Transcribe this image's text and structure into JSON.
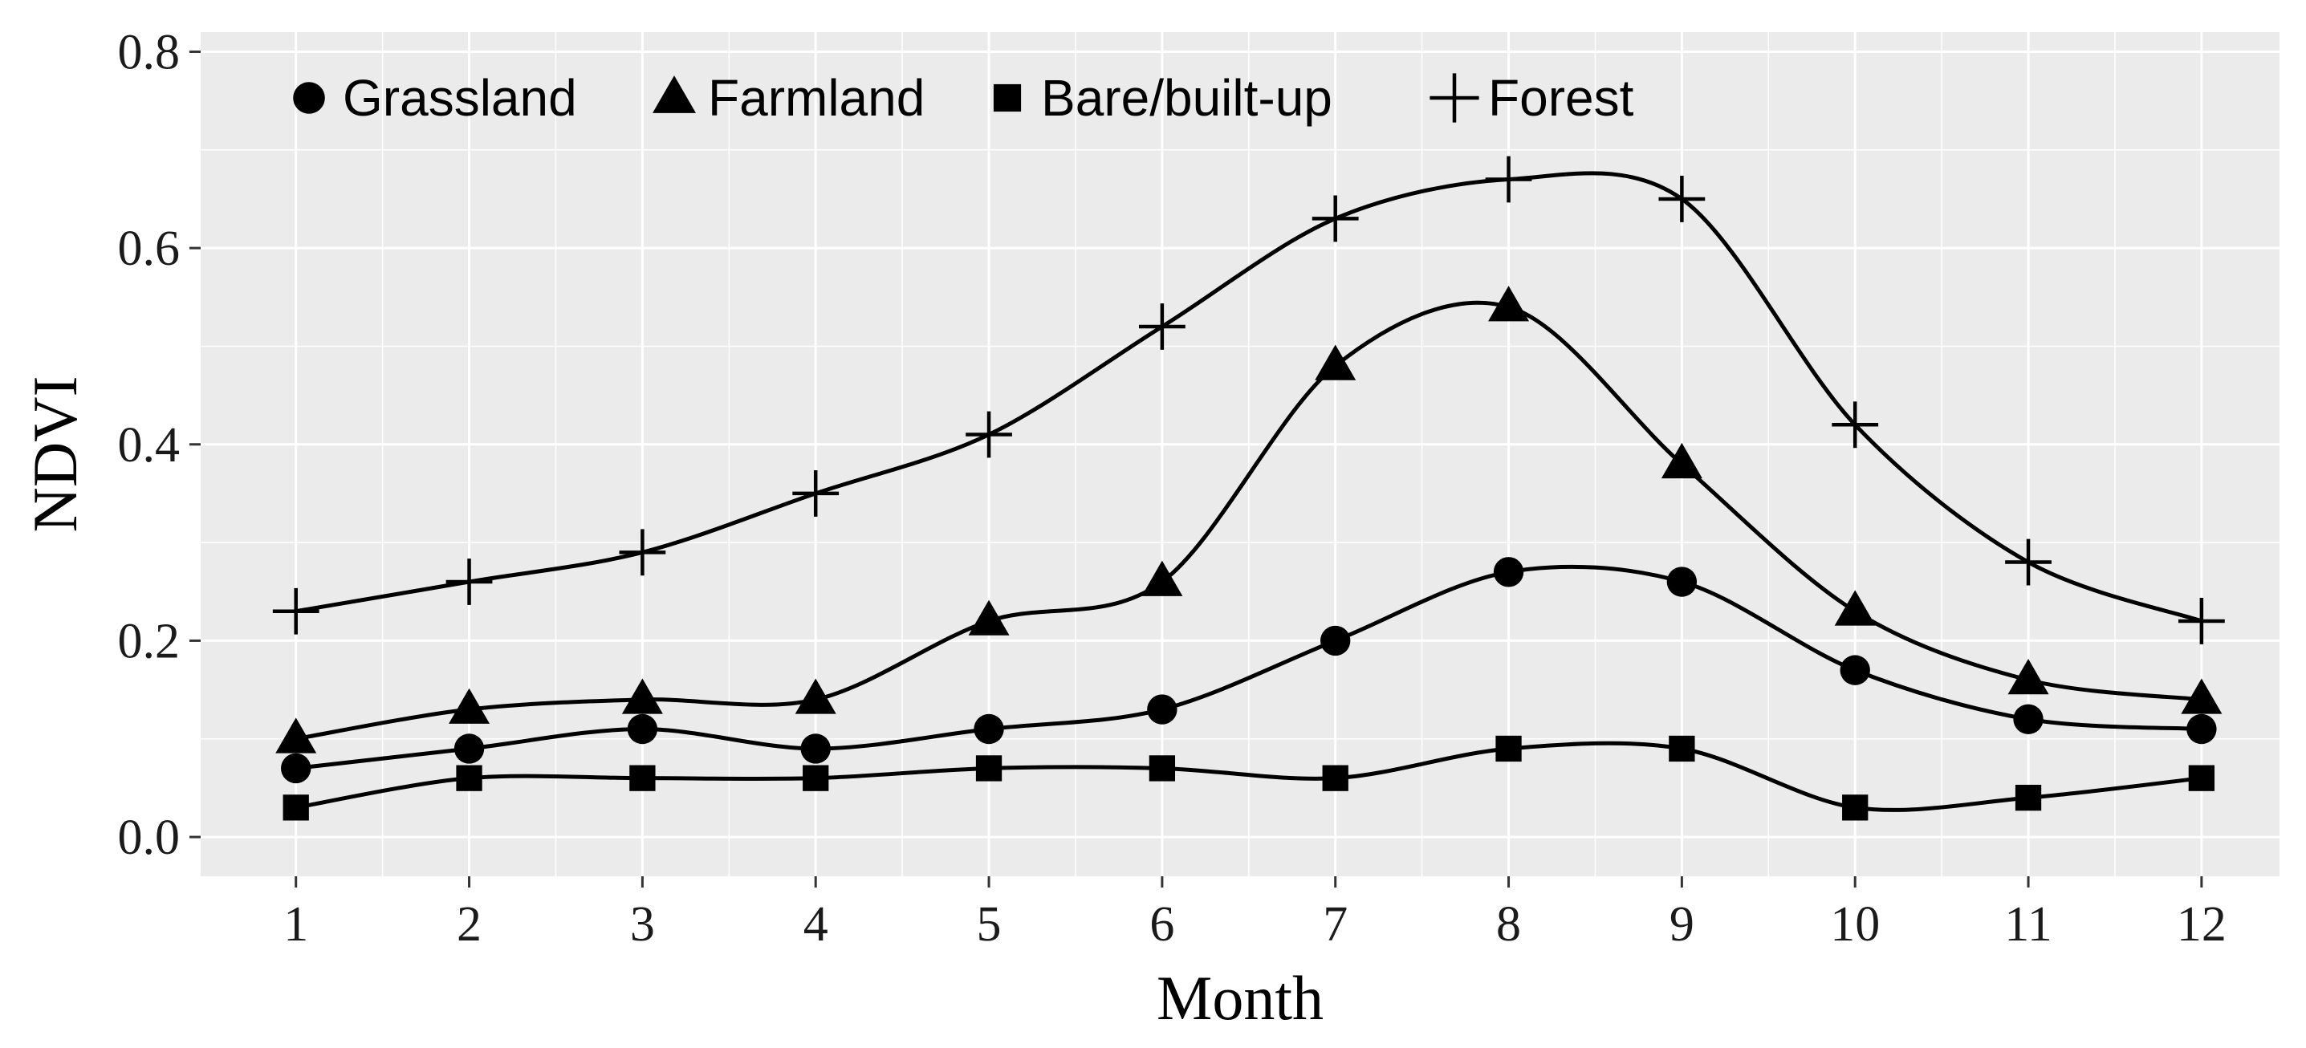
{
  "chart_data": {
    "type": "line",
    "xlabel": "Month",
    "ylabel": "NDVI",
    "x": [
      1,
      2,
      3,
      4,
      5,
      6,
      7,
      8,
      9,
      10,
      11,
      12
    ],
    "xlim": [
      0.45,
      12.45
    ],
    "ylim": [
      -0.04,
      0.82
    ],
    "x_ticks": [
      "1",
      "2",
      "3",
      "4",
      "5",
      "6",
      "7",
      "8",
      "9",
      "10",
      "11",
      "12"
    ],
    "y_ticks": [
      "0.0",
      "0.2",
      "0.4",
      "0.6",
      "0.8"
    ],
    "y_tick_values": [
      0.0,
      0.2,
      0.4,
      0.6,
      0.8
    ],
    "grid": true,
    "legend_position": "top-left",
    "colors": {
      "panel_background": "#ebebeb",
      "grid": "#ffffff",
      "line": "#000000"
    },
    "series": [
      {
        "name": "Grassland",
        "marker": "circle",
        "values": [
          0.07,
          0.09,
          0.11,
          0.09,
          0.11,
          0.13,
          0.2,
          0.27,
          0.26,
          0.17,
          0.12,
          0.11
        ]
      },
      {
        "name": "Farmland",
        "marker": "triangle",
        "values": [
          0.1,
          0.13,
          0.14,
          0.14,
          0.22,
          0.26,
          0.48,
          0.54,
          0.38,
          0.23,
          0.16,
          0.14
        ]
      },
      {
        "name": "Bare/built-up",
        "marker": "square",
        "values": [
          0.03,
          0.06,
          0.06,
          0.06,
          0.07,
          0.07,
          0.06,
          0.09,
          0.09,
          0.03,
          0.04,
          0.06
        ]
      },
      {
        "name": "Forest",
        "marker": "plus",
        "values": [
          0.23,
          0.26,
          0.29,
          0.35,
          0.41,
          0.52,
          0.63,
          0.67,
          0.65,
          0.42,
          0.28,
          0.22
        ]
      }
    ]
  }
}
